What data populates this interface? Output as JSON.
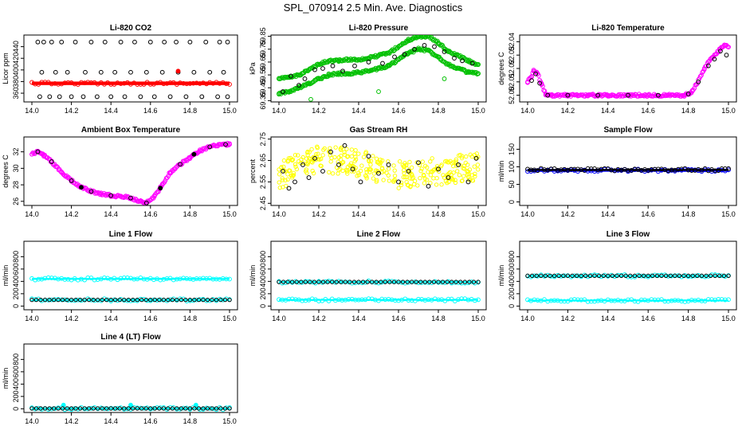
{
  "figure_title": "SPL_070914  2.5 Min. Ave. Diagnostics",
  "chart_data": [
    {
      "id": "co2",
      "type": "scatter",
      "title": "Li-820 CO2",
      "ylabel": "Licor ppm",
      "xlim": [
        14.0,
        15.0
      ],
      "ylim": [
        345,
        460
      ],
      "xticks": [
        "14.0",
        "14.2",
        "14.4",
        "14.6",
        "14.8",
        "15.0"
      ],
      "yticks": [
        "360",
        "380",
        "400",
        "420",
        "440"
      ],
      "ytick_values": [
        360,
        380,
        400,
        420,
        440
      ],
      "series": [
        {
          "color": "#000000",
          "style": "open",
          "x": [
            14.03,
            14.06,
            14.1,
            14.15,
            14.22,
            14.3,
            14.37,
            14.45,
            14.52,
            14.6,
            14.67,
            14.73,
            14.8,
            14.88,
            14.95,
            14.99
          ],
          "y": [
            448,
            448,
            448,
            448,
            448,
            448,
            448,
            448,
            448,
            448,
            448,
            448,
            448,
            448,
            448,
            448
          ]
        },
        {
          "color": "#000000",
          "style": "open",
          "x": [
            14.04,
            14.09,
            14.14,
            14.2,
            14.26,
            14.33,
            14.4,
            14.47,
            14.55,
            14.62,
            14.7,
            14.78,
            14.86,
            14.94,
            14.99
          ],
          "y": [
            354,
            354,
            354,
            354,
            354,
            354,
            354,
            354,
            354,
            354,
            354,
            354,
            354,
            354,
            354
          ]
        },
        {
          "color": "#000000",
          "style": "open",
          "x": [
            14.05,
            14.12,
            14.18,
            14.27,
            14.35,
            14.42,
            14.5,
            14.58,
            14.66,
            14.74,
            14.82,
            14.9,
            14.97
          ],
          "y": [
            396,
            396,
            396,
            396,
            396,
            396,
            396,
            396,
            396,
            396,
            396,
            396,
            396
          ]
        },
        {
          "color": "#ff0000",
          "style": "band",
          "x": [
            14.0,
            15.0
          ],
          "y": [
            377,
            377
          ],
          "halfwidth": 3
        },
        {
          "color": "#ff0000",
          "style": "filled",
          "x": [
            14.74
          ],
          "y": [
            398
          ]
        }
      ]
    },
    {
      "id": "pressure",
      "type": "scatter",
      "title": "Li-820 Pressure",
      "ylabel": "kPa",
      "xlim": [
        14.0,
        15.0
      ],
      "ylim": [
        69.34,
        69.86
      ],
      "xticks": [
        "14.0",
        "14.2",
        "14.4",
        "14.6",
        "14.8",
        "15.0"
      ],
      "yticks": [
        "69.35",
        "69.45",
        "69.55",
        "69.65",
        "69.75",
        "69.85"
      ],
      "ytick_values": [
        69.35,
        69.45,
        69.55,
        69.65,
        69.75,
        69.85
      ],
      "series": [
        {
          "color": "#00c000",
          "style": "filled",
          "x": [
            14.0,
            14.05,
            14.1,
            14.15,
            14.2,
            14.25,
            14.3,
            14.35,
            14.4,
            14.45,
            14.5,
            14.55,
            14.6,
            14.65,
            14.7,
            14.75,
            14.8,
            14.85,
            14.9,
            14.95,
            15.0
          ],
          "y": [
            69.52,
            69.53,
            69.55,
            69.59,
            69.63,
            69.66,
            69.66,
            69.67,
            69.67,
            69.68,
            69.7,
            69.72,
            69.77,
            69.82,
            69.85,
            69.85,
            69.8,
            69.73,
            69.7,
            69.66,
            69.63
          ]
        },
        {
          "color": "#00c000",
          "style": "filled",
          "x": [
            14.0,
            14.05,
            14.1,
            14.15,
            14.2,
            14.25,
            14.3,
            14.35,
            14.4,
            14.45,
            14.5,
            14.55,
            14.6,
            14.65,
            14.7,
            14.75,
            14.8,
            14.85,
            14.9,
            14.95,
            15.0
          ],
          "y": [
            69.4,
            69.42,
            69.45,
            69.48,
            69.52,
            69.55,
            69.56,
            69.56,
            69.57,
            69.58,
            69.6,
            69.62,
            69.67,
            69.72,
            69.75,
            69.74,
            69.69,
            69.63,
            69.6,
            69.57,
            69.56
          ]
        },
        {
          "color": "#00c000",
          "style": "open",
          "x": [
            14.16,
            14.5,
            14.83
          ],
          "y": [
            69.36,
            69.42,
            69.52
          ]
        },
        {
          "color": "#000000",
          "style": "open",
          "x": [
            14.02,
            14.06,
            14.1,
            14.13,
            14.18,
            14.22,
            14.27,
            14.32,
            14.38,
            14.45,
            14.52,
            14.58,
            14.63,
            14.68,
            14.73,
            14.78,
            14.83,
            14.88,
            14.92,
            14.97
          ],
          "y": [
            69.42,
            69.54,
            69.47,
            69.52,
            69.59,
            69.6,
            69.62,
            69.58,
            69.62,
            69.65,
            69.64,
            69.69,
            69.71,
            69.75,
            69.78,
            69.77,
            69.73,
            69.68,
            69.66,
            69.64
          ]
        }
      ]
    },
    {
      "id": "temperature",
      "type": "scatter",
      "title": "Li-820 Temperature",
      "ylabel": "degrees C",
      "xlim": [
        14.0,
        15.0
      ],
      "ylim": [
        51.995,
        52.045
      ],
      "xticks": [
        "14.0",
        "14.2",
        "14.4",
        "14.6",
        "14.8",
        "15.0"
      ],
      "yticks": [
        "52.00",
        "52.01",
        "52.02",
        "52.03",
        "52.04"
      ],
      "ytick_values": [
        52.0,
        52.01,
        52.02,
        52.03,
        52.04
      ],
      "series": [
        {
          "color": "#ff00ff",
          "style": "filled",
          "x": [
            14.0,
            14.02,
            14.03,
            14.05,
            14.07,
            14.09,
            14.12,
            14.2,
            14.3,
            14.4,
            14.5,
            14.6,
            14.7,
            14.78,
            14.8,
            14.82,
            14.84,
            14.86,
            14.88,
            14.9,
            14.92,
            14.94,
            14.96,
            14.98,
            15.0
          ],
          "y": [
            52.01,
            52.014,
            52.018,
            52.016,
            52.008,
            52.001,
            52.0,
            52.0,
            52.0,
            52.0,
            52.0,
            52.0,
            52.0,
            52.0,
            52.001,
            52.003,
            52.008,
            52.014,
            52.02,
            52.025,
            52.028,
            52.031,
            52.035,
            52.037,
            52.036
          ]
        },
        {
          "color": "#000000",
          "style": "open",
          "x": [
            14.02,
            14.04,
            14.06,
            14.1,
            14.2,
            14.35,
            14.5,
            14.65,
            14.8,
            14.85,
            14.9,
            14.93,
            14.96,
            14.99
          ],
          "y": [
            52.011,
            52.016,
            52.009,
            52.0,
            52.0,
            52.0,
            52.0,
            52.0,
            52.001,
            52.01,
            52.022,
            52.027,
            52.033,
            52.03
          ]
        }
      ]
    },
    {
      "id": "box_temp",
      "type": "scatter",
      "title": "Ambient Box Temperature",
      "ylabel": "degrees C",
      "xlim": [
        14.0,
        15.0
      ],
      "ylim": [
        25.5,
        33.8
      ],
      "xticks": [
        "14.0",
        "14.2",
        "14.4",
        "14.6",
        "14.8",
        "15.0"
      ],
      "yticks": [
        "26",
        "28",
        "30",
        "32"
      ],
      "ytick_values": [
        26,
        28,
        30,
        32
      ],
      "series": [
        {
          "color": "#ff00ff",
          "style": "filled",
          "x": [
            14.0,
            14.03,
            14.06,
            14.1,
            14.15,
            14.2,
            14.25,
            14.3,
            14.35,
            14.4,
            14.45,
            14.5,
            14.55,
            14.58,
            14.62,
            14.66,
            14.7,
            14.75,
            14.8,
            14.85,
            14.9,
            14.95,
            15.0
          ],
          "y": [
            31.7,
            32.0,
            31.6,
            30.8,
            29.5,
            28.5,
            27.7,
            27.2,
            26.9,
            26.7,
            26.6,
            26.4,
            26.0,
            25.8,
            26.6,
            28.0,
            29.5,
            30.5,
            31.3,
            32.1,
            32.6,
            32.9,
            32.9
          ]
        },
        {
          "color": "#000000",
          "style": "open",
          "x": [
            14.03,
            14.1,
            14.2,
            14.3,
            14.4,
            14.5,
            14.58,
            14.65,
            14.75,
            14.82,
            14.9,
            14.98
          ],
          "y": [
            32.0,
            30.8,
            28.5,
            27.2,
            26.7,
            26.4,
            25.8,
            27.6,
            30.5,
            31.7,
            32.6,
            32.9
          ]
        },
        {
          "color": "#000000",
          "style": "filled",
          "x": [
            14.25,
            14.65,
            14.82
          ],
          "y": [
            27.7,
            27.6,
            31.7
          ]
        }
      ]
    },
    {
      "id": "rh",
      "type": "scatter",
      "title": "Gas Stream RH",
      "ylabel": "percent",
      "xlim": [
        14.0,
        15.0
      ],
      "ylim": [
        2.44,
        2.76
      ],
      "xticks": [
        "14.0",
        "14.2",
        "14.4",
        "14.6",
        "14.8",
        "15.0"
      ],
      "yticks": [
        "2.45",
        "2.55",
        "2.65",
        "2.75"
      ],
      "ytick_values": [
        2.45,
        2.55,
        2.65,
        2.75
      ],
      "series": [
        {
          "color": "#ffff00",
          "style": "scatter-cloud",
          "x": [
            14.0,
            15.0
          ],
          "center": [
            2.58,
            2.66,
            2.64,
            2.58,
            2.6,
            2.62
          ],
          "spread": 0.065,
          "n": 320
        },
        {
          "color": "#000000",
          "style": "open",
          "x": [
            14.02,
            14.05,
            14.08,
            14.12,
            14.15,
            14.18,
            14.22,
            14.26,
            14.3,
            14.33,
            14.37,
            14.41,
            14.45,
            14.5,
            14.55,
            14.6,
            14.65,
            14.7,
            14.75,
            14.8,
            14.85,
            14.9,
            14.95,
            14.99
          ],
          "y": [
            2.6,
            2.52,
            2.55,
            2.63,
            2.57,
            2.66,
            2.6,
            2.69,
            2.63,
            2.72,
            2.61,
            2.55,
            2.67,
            2.59,
            2.63,
            2.55,
            2.6,
            2.64,
            2.53,
            2.61,
            2.57,
            2.63,
            2.55,
            2.66
          ]
        }
      ]
    },
    {
      "id": "sample_flow",
      "type": "scatter",
      "title": "Sample Flow",
      "ylabel": "ml/min",
      "xlim": [
        14.0,
        15.0
      ],
      "ylim": [
        -10,
        185
      ],
      "xticks": [
        "14.0",
        "14.2",
        "14.4",
        "14.6",
        "14.8",
        "15.0"
      ],
      "yticks": [
        "0",
        "50",
        "100",
        "150"
      ],
      "ytick_values": [
        0,
        50,
        100,
        150
      ],
      "series": [
        {
          "color": "#0000ff",
          "style": "band",
          "x": [
            14.0,
            15.0
          ],
          "y": [
            90,
            90
          ],
          "halfwidth": 4
        },
        {
          "color": "#000000",
          "style": "band",
          "x": [
            14.0,
            15.0
          ],
          "y": [
            92,
            92
          ],
          "halfwidth": 1.5
        }
      ]
    },
    {
      "id": "line1",
      "type": "scatter",
      "title": "Line 1 Flow",
      "ylabel": "ml/min",
      "xlim": [
        14.0,
        15.0
      ],
      "ylim": [
        -60,
        1050
      ],
      "xticks": [
        "14.0",
        "14.2",
        "14.4",
        "14.6",
        "14.8",
        "15.0"
      ],
      "yticks": [
        "0",
        "200",
        "400",
        "600",
        "800"
      ],
      "ytick_values": [
        0,
        200,
        400,
        600,
        800
      ],
      "series": [
        {
          "color": "#00ffff",
          "style": "band",
          "x": [
            14.0,
            15.0
          ],
          "y": [
            440,
            440
          ],
          "halfwidth": 14
        },
        {
          "color": "#00ffff",
          "style": "band",
          "x": [
            14.0,
            15.0
          ],
          "y": [
            100,
            100
          ],
          "halfwidth": 10
        },
        {
          "color": "#000000",
          "style": "dots",
          "x": [
            14.0,
            15.0
          ],
          "y": [
            100,
            100
          ],
          "n": 46
        }
      ]
    },
    {
      "id": "line2",
      "type": "scatter",
      "title": "Line 2 Flow",
      "ylabel": "ml/min",
      "xlim": [
        14.0,
        15.0
      ],
      "ylim": [
        -60,
        1050
      ],
      "xticks": [
        "14.0",
        "14.2",
        "14.4",
        "14.6",
        "14.8",
        "15.0"
      ],
      "yticks": [
        "0",
        "200",
        "400",
        "600",
        "800"
      ],
      "ytick_values": [
        0,
        200,
        400,
        600,
        800
      ],
      "series": [
        {
          "color": "#00ffff",
          "style": "band",
          "x": [
            14.0,
            15.0
          ],
          "y": [
            390,
            390
          ],
          "halfwidth": 12
        },
        {
          "color": "#00ffff",
          "style": "band",
          "x": [
            14.0,
            15.0
          ],
          "y": [
            100,
            100
          ],
          "halfwidth": 14
        },
        {
          "color": "#000000",
          "style": "dots",
          "x": [
            14.0,
            15.0
          ],
          "y": [
            390,
            390
          ],
          "n": 46
        }
      ]
    },
    {
      "id": "line3",
      "type": "scatter",
      "title": "Line 3 Flow",
      "ylabel": "ml/min",
      "xlim": [
        14.0,
        15.0
      ],
      "ylim": [
        -60,
        1050
      ],
      "xticks": [
        "14.0",
        "14.2",
        "14.4",
        "14.6",
        "14.8",
        "15.0"
      ],
      "yticks": [
        "0",
        "200",
        "400",
        "600",
        "800"
      ],
      "ytick_values": [
        0,
        200,
        400,
        600,
        800
      ],
      "series": [
        {
          "color": "#00ffff",
          "style": "band",
          "x": [
            14.0,
            15.0
          ],
          "y": [
            490,
            490
          ],
          "halfwidth": 10
        },
        {
          "color": "#00ffff",
          "style": "band",
          "x": [
            14.0,
            15.0
          ],
          "y": [
            90,
            90
          ],
          "halfwidth": 14
        },
        {
          "color": "#000000",
          "style": "dots",
          "x": [
            14.0,
            15.0
          ],
          "y": [
            490,
            490
          ],
          "n": 46
        }
      ]
    },
    {
      "id": "line4",
      "type": "scatter",
      "title": "Line 4 (LT) Flow",
      "ylabel": "ml/min",
      "xlim": [
        14.0,
        15.0
      ],
      "ylim": [
        -60,
        1050
      ],
      "xticks": [
        "14.0",
        "14.2",
        "14.4",
        "14.6",
        "14.8",
        "15.0"
      ],
      "yticks": [
        "0",
        "200",
        "400",
        "600",
        "800"
      ],
      "ytick_values": [
        0,
        200,
        400,
        600,
        800
      ],
      "series": [
        {
          "color": "#00ffff",
          "style": "band",
          "x": [
            14.0,
            15.0
          ],
          "y": [
            5,
            5
          ],
          "halfwidth": 10
        },
        {
          "color": "#00ffff",
          "style": "filled",
          "x": [
            14.16,
            14.5,
            14.83
          ],
          "y": [
            60,
            60,
            60
          ]
        },
        {
          "color": "#000000",
          "style": "dots",
          "x": [
            14.0,
            15.0
          ],
          "y": [
            5,
            5
          ],
          "n": 46
        }
      ]
    }
  ]
}
